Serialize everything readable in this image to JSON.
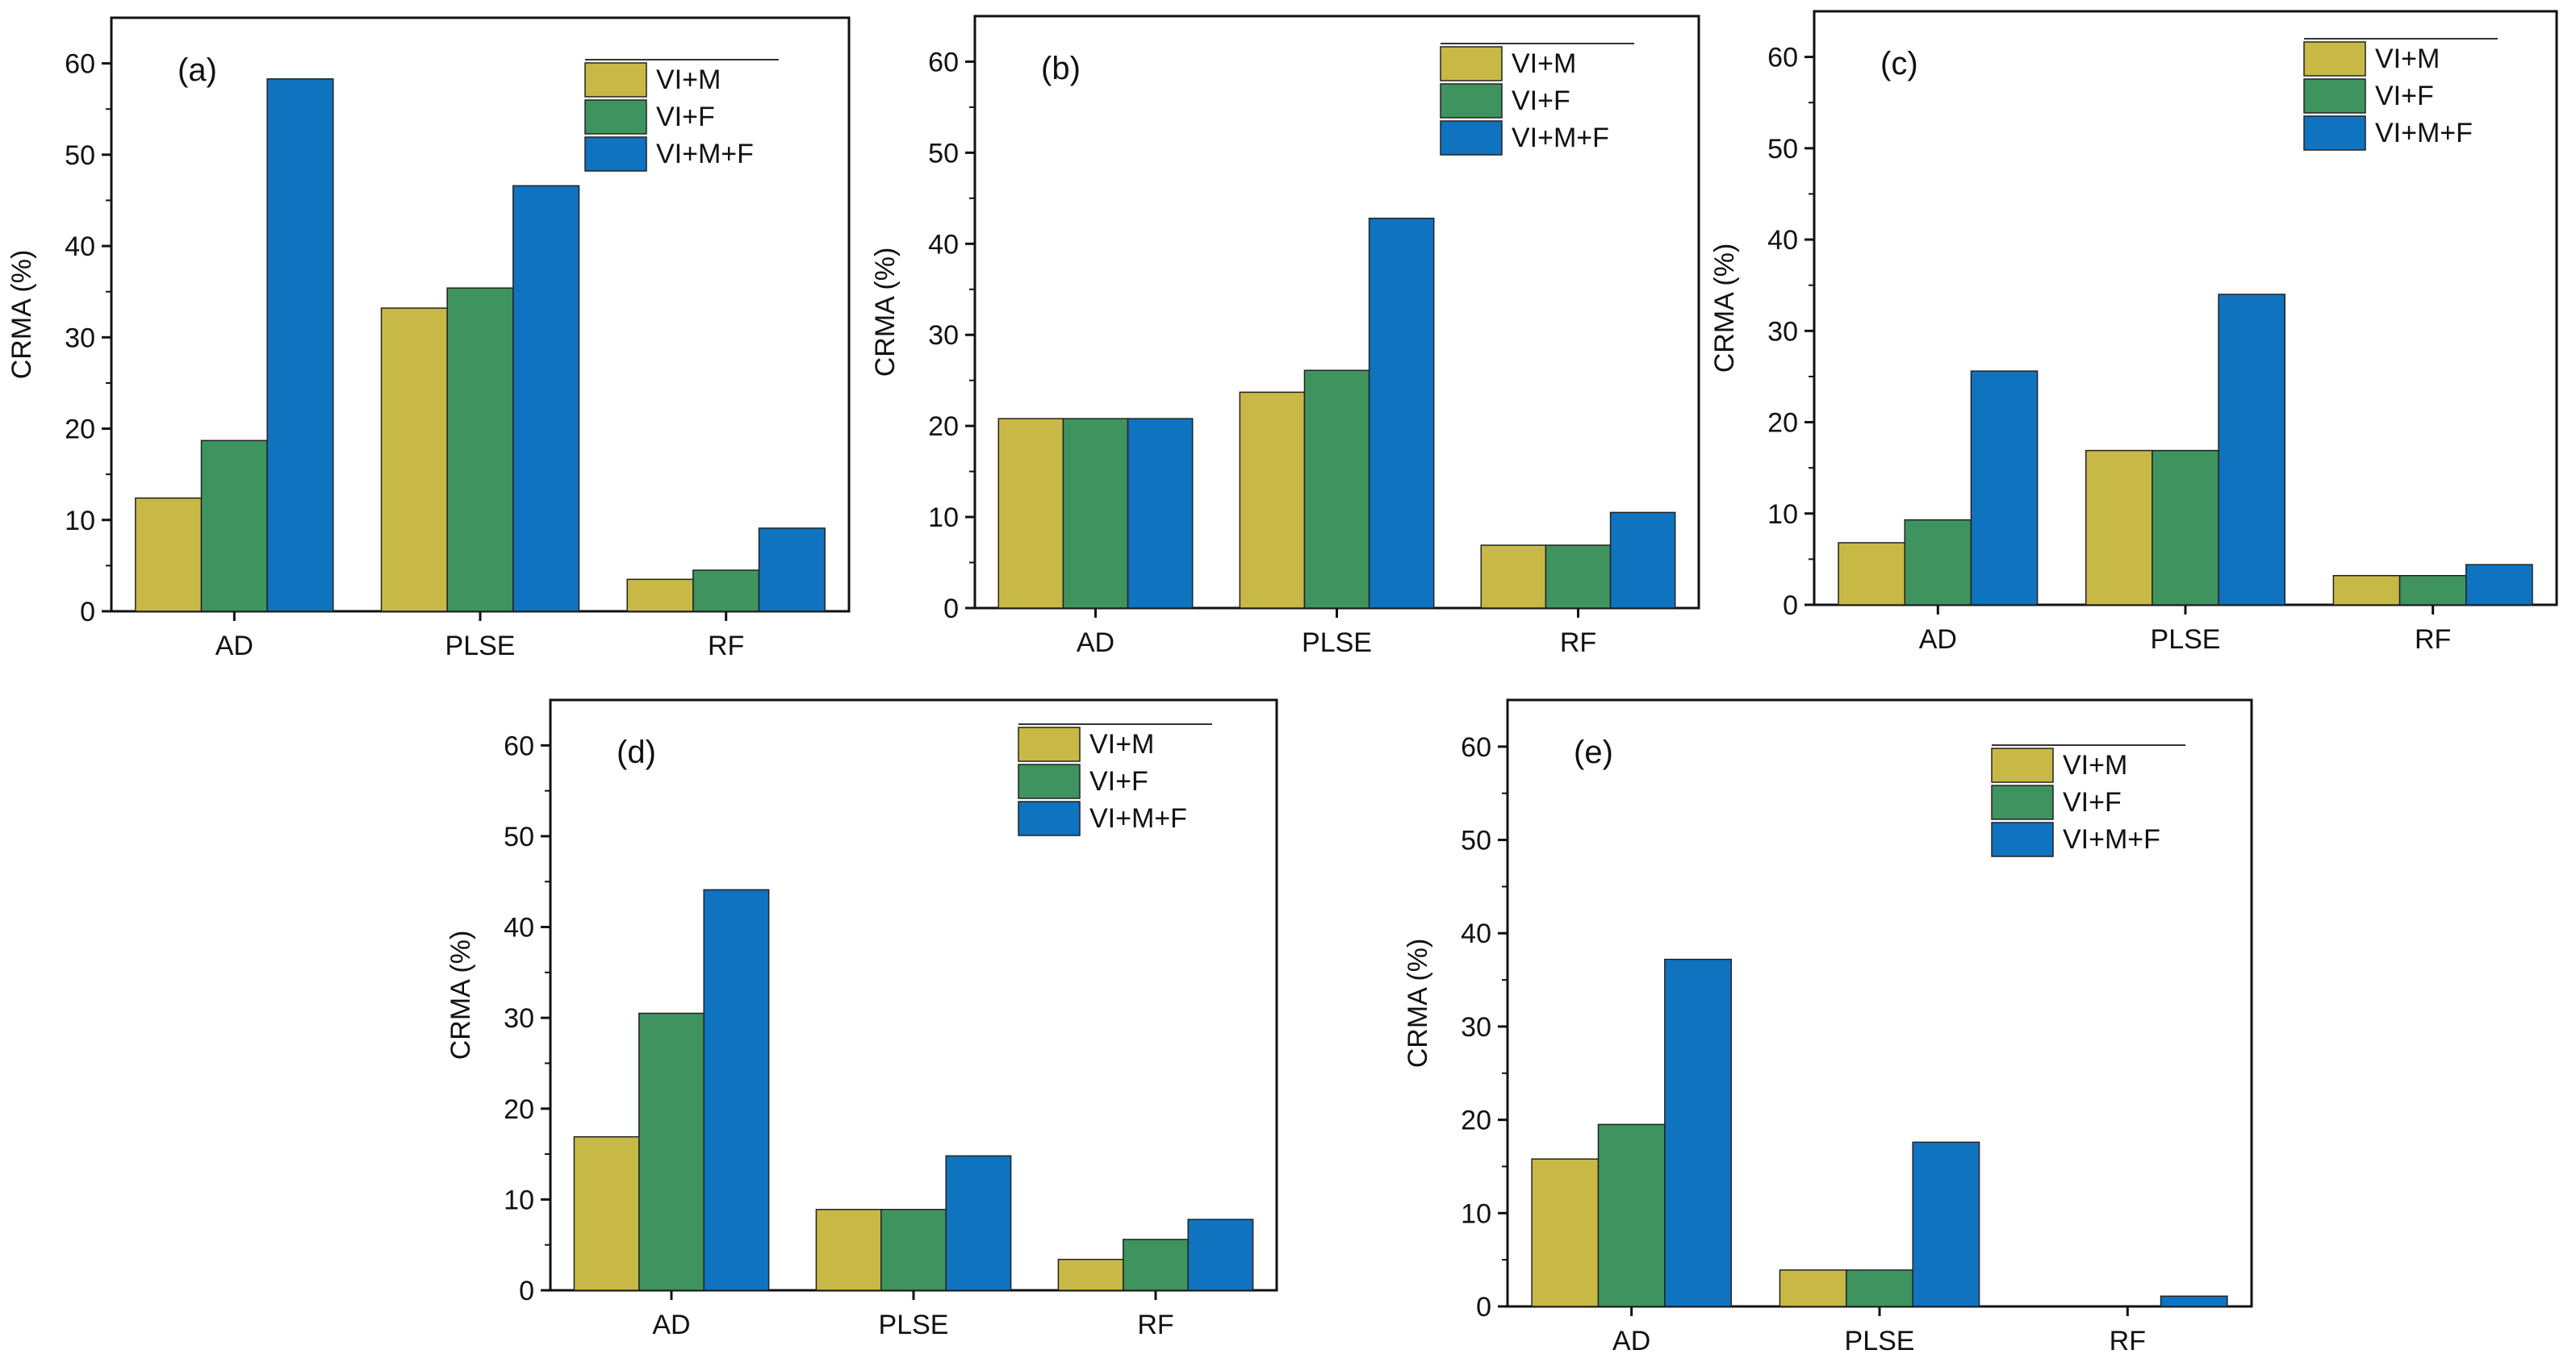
{
  "figure": {
    "legend_entries": [
      "VI+M",
      "VI+F",
      "VI+M+F"
    ],
    "colors": {
      "VI+M": "#c8b946",
      "VI+F": "#3f935f",
      "VI+M+F": "#0f73c0"
    }
  },
  "chart_data": [
    {
      "type": "bar",
      "panel_label": "(a)",
      "categories": [
        "AD",
        "PLSE",
        "RF"
      ],
      "series": [
        {
          "name": "VI+M",
          "values": [
            12.4,
            33.2,
            3.5
          ]
        },
        {
          "name": "VI+F",
          "values": [
            18.7,
            35.4,
            4.5
          ]
        },
        {
          "name": "VI+M+F",
          "values": [
            58.3,
            46.6,
            9.1
          ]
        }
      ],
      "xlabel": "",
      "ylabel": "CRMA (%)",
      "ylim": [
        0,
        65
      ],
      "yticks": [
        "0",
        "10",
        "20",
        "30",
        "40",
        "50",
        "60"
      ],
      "legend": "top-right"
    },
    {
      "type": "bar",
      "panel_label": "(b)",
      "categories": [
        "AD",
        "PLSE",
        "RF"
      ],
      "series": [
        {
          "name": "VI+M",
          "values": [
            20.8,
            23.7,
            6.9
          ]
        },
        {
          "name": "VI+F",
          "values": [
            20.8,
            26.1,
            6.9
          ]
        },
        {
          "name": "VI+M+F",
          "values": [
            20.8,
            42.8,
            10.5
          ]
        }
      ],
      "xlabel": "",
      "ylabel": "CRMA (%)",
      "ylim": [
        0,
        65
      ],
      "yticks": [
        "0",
        "10",
        "20",
        "30",
        "40",
        "50",
        "60"
      ],
      "legend": "top-right"
    },
    {
      "type": "bar",
      "panel_label": "(c)",
      "categories": [
        "AD",
        "PLSE",
        "RF"
      ],
      "series": [
        {
          "name": "VI+M",
          "values": [
            6.8,
            16.9,
            3.2
          ]
        },
        {
          "name": "VI+F",
          "values": [
            9.3,
            16.9,
            3.2
          ]
        },
        {
          "name": "VI+M+F",
          "values": [
            25.6,
            34.0,
            4.4
          ]
        }
      ],
      "xlabel": "",
      "ylabel": "CRMA (%)",
      "ylim": [
        0,
        65
      ],
      "yticks": [
        "0",
        "10",
        "20",
        "30",
        "40",
        "50",
        "60"
      ],
      "legend": "top-right"
    },
    {
      "type": "bar",
      "panel_label": "(d)",
      "categories": [
        "AD",
        "PLSE",
        "RF"
      ],
      "series": [
        {
          "name": "VI+M",
          "values": [
            16.9,
            8.9,
            3.4
          ]
        },
        {
          "name": "VI+F",
          "values": [
            30.5,
            8.9,
            5.6
          ]
        },
        {
          "name": "VI+M+F",
          "values": [
            44.1,
            14.8,
            7.8
          ]
        }
      ],
      "xlabel": "",
      "ylabel": "CRMA (%)",
      "ylim": [
        0,
        65
      ],
      "yticks": [
        "0",
        "10",
        "20",
        "30",
        "40",
        "50",
        "60"
      ],
      "legend": "top-right"
    },
    {
      "type": "bar",
      "panel_label": "(e)",
      "categories": [
        "AD",
        "PLSE",
        "RF"
      ],
      "series": [
        {
          "name": "VI+M",
          "values": [
            15.8,
            3.9,
            0.0
          ]
        },
        {
          "name": "VI+F",
          "values": [
            19.5,
            3.9,
            0.0
          ]
        },
        {
          "name": "VI+M+F",
          "values": [
            37.2,
            17.6,
            1.1
          ]
        }
      ],
      "xlabel": "",
      "ylabel": "CRMA (%)",
      "ylim": [
        0,
        65
      ],
      "yticks": [
        "0",
        "10",
        "20",
        "30",
        "40",
        "50",
        "60"
      ],
      "legend": "top-right"
    }
  ]
}
